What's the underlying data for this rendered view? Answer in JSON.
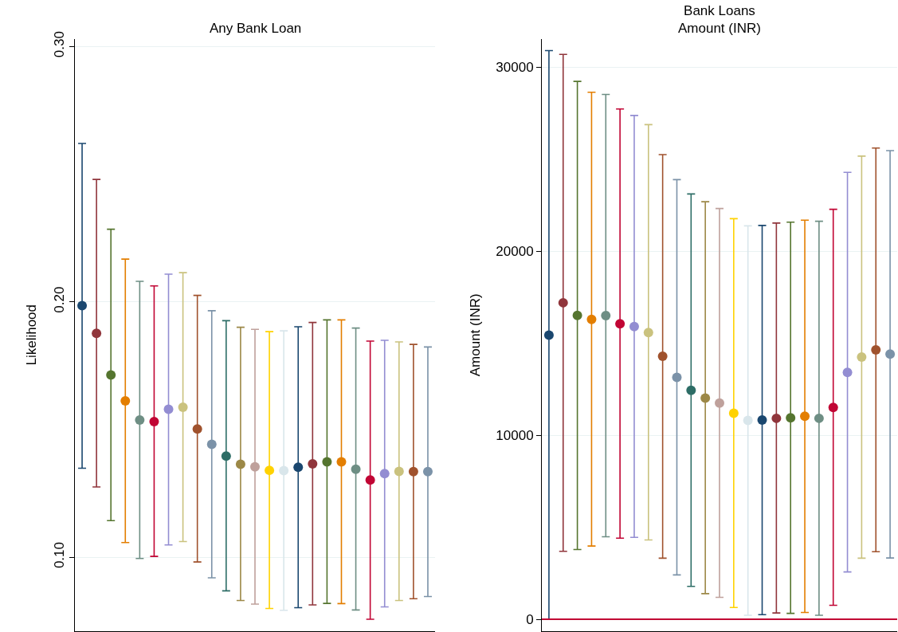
{
  "chart_data": [
    {
      "type": "scatter",
      "title": "Any Bank Loan",
      "ylabel": "Likelihood",
      "categories": [
        null,
        null,
        null,
        null,
        null,
        null,
        null,
        null,
        null,
        null,
        null,
        null,
        null,
        null,
        null,
        null,
        null,
        null,
        null,
        null,
        null,
        null,
        null,
        null,
        null
      ],
      "values": [
        0.1985,
        0.1876,
        0.1713,
        0.1612,
        0.1537,
        0.1531,
        0.1579,
        0.1587,
        0.1502,
        0.1442,
        0.1396,
        0.1364,
        0.1354,
        0.134,
        0.1339,
        0.1352,
        0.1365,
        0.1373,
        0.1373,
        0.1344,
        0.1302,
        0.1327,
        0.1336,
        0.1335,
        0.1335
      ],
      "errors": [
        [
          0.1348,
          0.262
        ],
        [
          0.1275,
          0.2479
        ],
        [
          0.1143,
          0.2284
        ],
        [
          0.1057,
          0.2167
        ],
        [
          0.0995,
          0.208
        ],
        [
          0.1003,
          0.2062
        ],
        [
          0.1048,
          0.2108
        ],
        [
          0.1061,
          0.2114
        ],
        [
          0.0981,
          0.2025
        ],
        [
          0.0919,
          0.1965
        ],
        [
          0.0868,
          0.1926
        ],
        [
          0.083,
          0.19
        ],
        [
          0.0816,
          0.1892
        ],
        [
          0.0799,
          0.1883
        ],
        [
          0.0792,
          0.1886
        ],
        [
          0.0802,
          0.1902
        ],
        [
          0.0813,
          0.1919
        ],
        [
          0.0819,
          0.1929
        ],
        [
          0.0818,
          0.1929
        ],
        [
          0.0793,
          0.1897
        ],
        [
          0.0757,
          0.1846
        ],
        [
          0.0805,
          0.1849
        ],
        [
          0.083,
          0.1843
        ],
        [
          0.0837,
          0.1833
        ],
        [
          0.0846,
          0.1823
        ]
      ],
      "colors": [
        "#1a476f",
        "#90353b",
        "#55752f",
        "#e37e00",
        "#6e8e84",
        "#c10534",
        "#938dd2",
        "#cac27e",
        "#a0522d",
        "#7b92a8",
        "#2d6d66",
        "#9c8847",
        "#bfa19c",
        "#ffd200",
        "#d9e6eb",
        "#1a476f",
        "#90353b",
        "#55752f",
        "#e37e00",
        "#6e8e84",
        "#c10534",
        "#938dd2",
        "#cac27e",
        "#a0522d",
        "#7b92a8"
      ],
      "ylim": [
        0.071,
        0.303
      ],
      "yticks": [
        {
          "value": 0.1,
          "label": "0.10"
        },
        {
          "value": 0.2,
          "label": "0.20"
        },
        {
          "value": 0.3,
          "label": "0.30"
        }
      ],
      "grid": "y",
      "tick_labels": "y",
      "marker": "circle"
    },
    {
      "type": "scatter",
      "title": "Bank Loans\nAmount (INR)",
      "ylabel": "Amount (INR)",
      "categories": [
        null,
        null,
        null,
        null,
        null,
        null,
        null,
        null,
        null,
        null,
        null,
        null,
        null,
        null,
        null,
        null,
        null,
        null,
        null,
        null,
        null,
        null,
        null,
        null,
        null
      ],
      "values": [
        15440,
        17200,
        16510,
        16300,
        16500,
        16060,
        15910,
        15580,
        14290,
        13150,
        12440,
        12020,
        11750,
        11200,
        10810,
        10830,
        10920,
        10950,
        11030,
        10920,
        11510,
        13420,
        14250,
        14640,
        14410
      ],
      "errors": [
        [
          0,
          30900
        ],
        [
          3690,
          30700
        ],
        [
          3790,
          29230
        ],
        [
          3980,
          28640
        ],
        [
          4480,
          28520
        ],
        [
          4410,
          27730
        ],
        [
          4450,
          27380
        ],
        [
          4310,
          26880
        ],
        [
          3320,
          25250
        ],
        [
          2410,
          23890
        ],
        [
          1790,
          23110
        ],
        [
          1390,
          22690
        ],
        [
          1190,
          22320
        ],
        [
          640,
          21770
        ],
        [
          220,
          21380
        ],
        [
          250,
          21400
        ],
        [
          340,
          21530
        ],
        [
          320,
          21580
        ],
        [
          370,
          21690
        ],
        [
          220,
          21630
        ],
        [
          760,
          22280
        ],
        [
          2570,
          24290
        ],
        [
          3320,
          25170
        ],
        [
          3670,
          25610
        ],
        [
          3330,
          25470
        ]
      ],
      "colors": [
        "#1a476f",
        "#90353b",
        "#55752f",
        "#e37e00",
        "#6e8e84",
        "#c10534",
        "#938dd2",
        "#cac27e",
        "#a0522d",
        "#7b92a8",
        "#2d6d66",
        "#9c8847",
        "#bfa19c",
        "#ffd200",
        "#d9e6eb",
        "#1a476f",
        "#90353b",
        "#55752f",
        "#e37e00",
        "#6e8e84",
        "#c10534",
        "#938dd2",
        "#cac27e",
        "#a0522d",
        "#7b92a8"
      ],
      "ylim": [
        -650,
        31550
      ],
      "yticks": [
        0,
        10000,
        20000,
        30000
      ],
      "ref_lines": [
        {
          "axis": "y",
          "value": 0,
          "color": "#c10534"
        }
      ],
      "grid": "y",
      "tick_labels": "y",
      "marker": "circle"
    }
  ]
}
